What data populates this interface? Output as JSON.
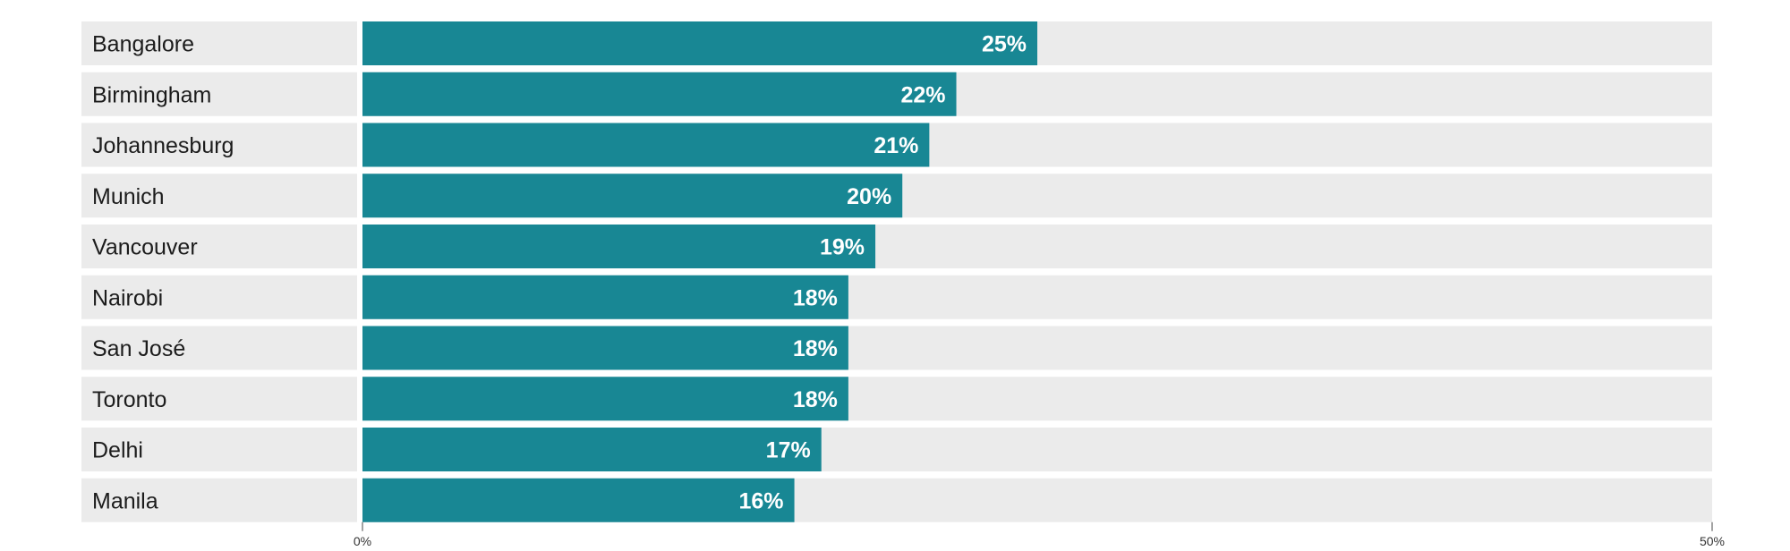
{
  "chart_data": {
    "type": "bar",
    "orientation": "horizontal",
    "categories": [
      "Bangalore",
      "Birmingham",
      "Johannesburg",
      "Munich",
      "Vancouver",
      "Nairobi",
      "San José",
      "Toronto",
      "Delhi",
      "Manila"
    ],
    "values": [
      25,
      22,
      21,
      20,
      19,
      18,
      18,
      18,
      17,
      16
    ],
    "value_labels": [
      "25%",
      "22%",
      "21%",
      "20%",
      "19%",
      "18%",
      "18%",
      "18%",
      "17%",
      "16%"
    ],
    "xlim": [
      0,
      50
    ],
    "x_ticks": [
      0,
      50
    ],
    "x_tick_labels": [
      "0%",
      "50%"
    ],
    "grid": false,
    "bar_color": "#188794",
    "track_color": "#ebebeb"
  }
}
